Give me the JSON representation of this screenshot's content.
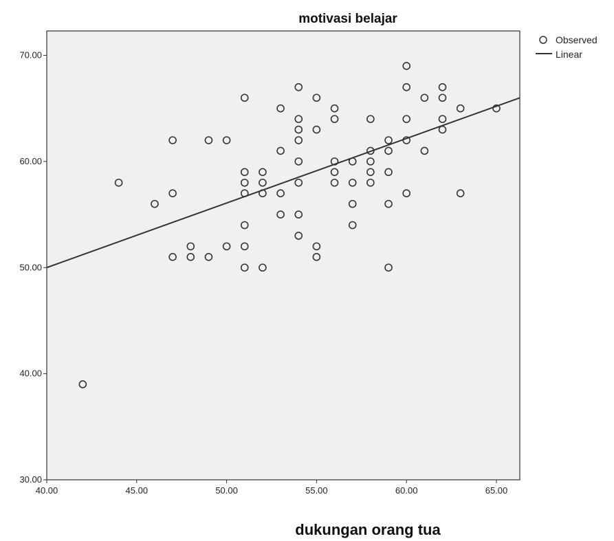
{
  "chart_data": {
    "type": "scatter",
    "title": "motivasi belajar",
    "xlabel": "dukungan orang tua",
    "ylabel": "",
    "xlim": [
      40,
      66.3
    ],
    "ylim": [
      30,
      72.3
    ],
    "x_ticks": [
      40,
      45,
      50,
      55,
      60,
      65
    ],
    "x_tick_labels": [
      "40.00",
      "45.00",
      "50.00",
      "55.00",
      "60.00",
      "65.00"
    ],
    "y_ticks": [
      30,
      40,
      50,
      60,
      70
    ],
    "y_tick_labels": [
      "30.00",
      "40.00",
      "50.00",
      "60.00",
      "70.00"
    ],
    "grid": false,
    "legend_position": "top-right",
    "legend": [
      "Observed",
      "Linear"
    ],
    "colors": {
      "plot_background": "#f0f0f0",
      "marker": "#333333",
      "line": "#333333"
    },
    "series": [
      {
        "name": "Observed",
        "kind": "scatter",
        "points": [
          [
            42,
            39
          ],
          [
            44,
            58
          ],
          [
            46,
            56
          ],
          [
            47,
            62
          ],
          [
            47,
            57
          ],
          [
            47,
            51
          ],
          [
            48,
            52
          ],
          [
            48,
            51
          ],
          [
            49,
            62
          ],
          [
            49,
            51
          ],
          [
            50,
            62
          ],
          [
            50,
            52
          ],
          [
            51,
            66
          ],
          [
            51,
            59
          ],
          [
            51,
            58
          ],
          [
            51,
            57
          ],
          [
            51,
            54
          ],
          [
            51,
            52
          ],
          [
            51,
            50
          ],
          [
            52,
            59
          ],
          [
            52,
            58
          ],
          [
            52,
            57
          ],
          [
            52,
            50
          ],
          [
            53,
            65
          ],
          [
            53,
            61
          ],
          [
            53,
            57
          ],
          [
            53,
            55
          ],
          [
            54,
            67
          ],
          [
            54,
            64
          ],
          [
            54,
            63
          ],
          [
            54,
            62
          ],
          [
            54,
            60
          ],
          [
            54,
            58
          ],
          [
            54,
            55
          ],
          [
            54,
            53
          ],
          [
            55,
            66
          ],
          [
            55,
            63
          ],
          [
            55,
            52
          ],
          [
            55,
            51
          ],
          [
            56,
            65
          ],
          [
            56,
            64
          ],
          [
            56,
            60
          ],
          [
            56,
            59
          ],
          [
            56,
            58
          ],
          [
            57,
            60
          ],
          [
            57,
            58
          ],
          [
            57,
            56
          ],
          [
            57,
            54
          ],
          [
            58,
            64
          ],
          [
            58,
            61
          ],
          [
            58,
            60
          ],
          [
            58,
            59
          ],
          [
            58,
            58
          ],
          [
            59,
            62
          ],
          [
            59,
            61
          ],
          [
            59,
            59
          ],
          [
            59,
            56
          ],
          [
            59,
            50
          ],
          [
            60,
            69
          ],
          [
            60,
            67
          ],
          [
            60,
            64
          ],
          [
            60,
            62
          ],
          [
            60,
            57
          ],
          [
            61,
            66
          ],
          [
            61,
            61
          ],
          [
            62,
            67
          ],
          [
            62,
            66
          ],
          [
            62,
            64
          ],
          [
            62,
            63
          ],
          [
            63,
            65
          ],
          [
            63,
            57
          ],
          [
            65,
            65
          ]
        ]
      },
      {
        "name": "Linear",
        "kind": "line",
        "points": [
          [
            40,
            50.0
          ],
          [
            66.3,
            66.0
          ]
        ]
      }
    ]
  }
}
